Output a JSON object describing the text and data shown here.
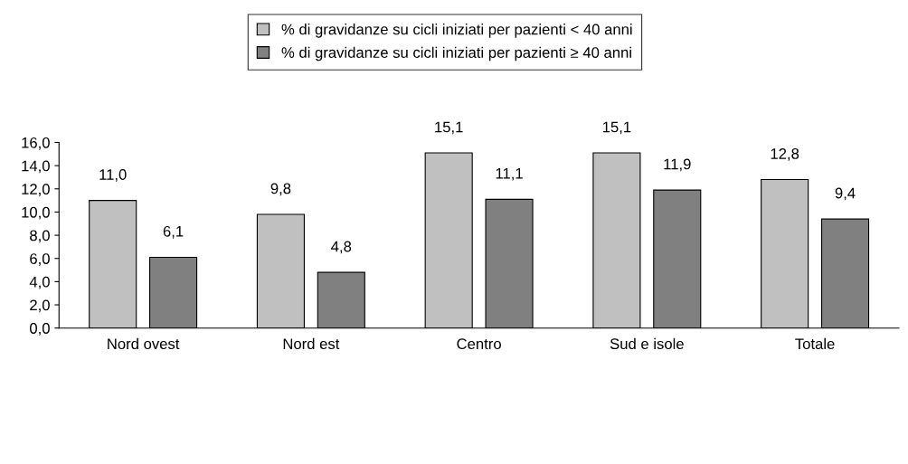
{
  "chart_data": {
    "type": "bar",
    "categories": [
      "Nord ovest",
      "Nord est",
      "Centro",
      "Sud e isole",
      "Totale"
    ],
    "series": [
      {
        "name": "% di gravidanze su cicli iniziati per pazienti < 40 anni",
        "color": "#c0c0c0",
        "values": [
          11.0,
          9.8,
          15.1,
          15.1,
          12.8
        ],
        "value_labels": [
          "11,0",
          "9,8",
          "15,1",
          "15,1",
          "12,8"
        ]
      },
      {
        "name": "% di gravidanze su cicli iniziati per pazienti ≥ 40 anni",
        "color": "#808080",
        "values": [
          6.1,
          4.8,
          11.1,
          11.9,
          9.4
        ],
        "value_labels": [
          "6,1",
          "4,8",
          "11,1",
          "11,9",
          "9,4"
        ]
      }
    ],
    "ylim": [
      0,
      16
    ],
    "yticks": [
      {
        "value": 0,
        "label": "0,0"
      },
      {
        "value": 2,
        "label": "2,0"
      },
      {
        "value": 4,
        "label": "4,0"
      },
      {
        "value": 6,
        "label": "6,0"
      },
      {
        "value": 8,
        "label": "8,0"
      },
      {
        "value": 10,
        "label": "10,0"
      },
      {
        "value": 12,
        "label": "12,0"
      },
      {
        "value": 14,
        "label": "14,0"
      },
      {
        "value": 16,
        "label": "16,0"
      }
    ],
    "grid": false,
    "legend": "top"
  }
}
